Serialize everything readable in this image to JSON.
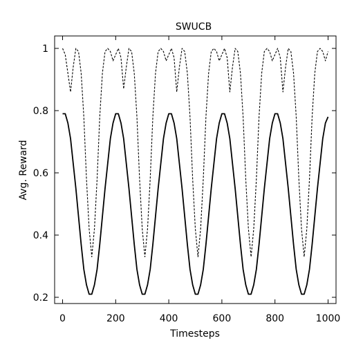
{
  "chart_data": {
    "type": "line",
    "title": "SWUCB",
    "xlabel": "Timesteps",
    "ylabel": "Avg. Reward",
    "xlim": [
      -30,
      1030
    ],
    "ylim": [
      0.18,
      1.04
    ],
    "xticks": [
      0,
      200,
      400,
      600,
      800,
      1000
    ],
    "xtick_labels": [
      "0",
      "200",
      "400",
      "600",
      "800",
      "1000"
    ],
    "yticks": [
      0.2,
      0.4,
      0.6,
      0.8,
      1.0
    ],
    "ytick_labels": [
      "0.2",
      "0.4",
      "0.6",
      "0.8",
      "1"
    ],
    "grid": false,
    "series": [
      {
        "style": "solid",
        "color": "#000000",
        "x": [
          0,
          10,
          20,
          30,
          40,
          50,
          60,
          70,
          80,
          90,
          100,
          110,
          120,
          130,
          140,
          150,
          160,
          170,
          180,
          190,
          200,
          210,
          220,
          230,
          240,
          250,
          260,
          270,
          280,
          290,
          300,
          310,
          320,
          330,
          340,
          350,
          360,
          370,
          380,
          390,
          400,
          410,
          420,
          430,
          440,
          450,
          460,
          470,
          480,
          490,
          500,
          510,
          520,
          530,
          540,
          550,
          560,
          570,
          580,
          590,
          600,
          610,
          620,
          630,
          640,
          650,
          660,
          670,
          680,
          690,
          700,
          710,
          720,
          730,
          740,
          750,
          760,
          770,
          780,
          790,
          800,
          810,
          820,
          830,
          840,
          850,
          860,
          870,
          880,
          890,
          900,
          910,
          920,
          930,
          940,
          950,
          960,
          970,
          980,
          990,
          1000
        ],
        "y": [
          0.79,
          0.79,
          0.76,
          0.71,
          0.63,
          0.55,
          0.46,
          0.37,
          0.29,
          0.24,
          0.21,
          0.21,
          0.24,
          0.29,
          0.37,
          0.46,
          0.55,
          0.63,
          0.71,
          0.76,
          0.79,
          0.79,
          0.76,
          0.71,
          0.63,
          0.55,
          0.46,
          0.37,
          0.29,
          0.24,
          0.21,
          0.21,
          0.24,
          0.29,
          0.37,
          0.46,
          0.55,
          0.63,
          0.71,
          0.76,
          0.79,
          0.79,
          0.76,
          0.71,
          0.63,
          0.55,
          0.46,
          0.37,
          0.29,
          0.24,
          0.21,
          0.21,
          0.24,
          0.29,
          0.37,
          0.46,
          0.55,
          0.63,
          0.71,
          0.76,
          0.79,
          0.79,
          0.76,
          0.71,
          0.63,
          0.55,
          0.46,
          0.37,
          0.29,
          0.24,
          0.21,
          0.21,
          0.24,
          0.29,
          0.37,
          0.46,
          0.55,
          0.63,
          0.71,
          0.76,
          0.79,
          0.79,
          0.76,
          0.71,
          0.63,
          0.55,
          0.46,
          0.37,
          0.29,
          0.24,
          0.21,
          0.21,
          0.24,
          0.29,
          0.37,
          0.46,
          0.55,
          0.63,
          0.71,
          0.76,
          0.78
        ]
      },
      {
        "style": "dashed",
        "color": "#000000",
        "x": [
          0,
          10,
          20,
          30,
          40,
          50,
          60,
          70,
          80,
          90,
          100,
          110,
          120,
          130,
          140,
          150,
          160,
          170,
          180,
          190,
          200,
          210,
          220,
          230,
          240,
          250,
          260,
          270,
          280,
          290,
          300,
          310,
          320,
          330,
          340,
          350,
          360,
          370,
          380,
          390,
          400,
          410,
          420,
          430,
          440,
          450,
          460,
          470,
          480,
          490,
          500,
          510,
          520,
          530,
          540,
          550,
          560,
          570,
          580,
          590,
          600,
          610,
          620,
          630,
          640,
          650,
          660,
          670,
          680,
          690,
          700,
          710,
          720,
          730,
          740,
          750,
          760,
          770,
          780,
          790,
          800,
          810,
          820,
          830,
          840,
          850,
          860,
          870,
          880,
          890,
          900,
          910,
          920,
          930,
          940,
          950,
          960,
          970,
          980,
          990,
          1000
        ],
        "y": [
          1.0,
          0.98,
          0.92,
          0.86,
          0.94,
          1.0,
          0.99,
          0.92,
          0.78,
          0.58,
          0.42,
          0.33,
          0.42,
          0.58,
          0.78,
          0.92,
          0.99,
          1.0,
          0.99,
          0.96,
          0.98,
          1.0,
          0.97,
          0.87,
          0.94,
          1.0,
          0.99,
          0.92,
          0.78,
          0.58,
          0.42,
          0.33,
          0.42,
          0.58,
          0.78,
          0.92,
          0.99,
          1.0,
          0.99,
          0.96,
          0.98,
          1.0,
          0.97,
          0.86,
          0.94,
          1.0,
          0.99,
          0.92,
          0.78,
          0.58,
          0.42,
          0.33,
          0.42,
          0.58,
          0.78,
          0.92,
          0.99,
          1.0,
          0.99,
          0.96,
          0.98,
          1.0,
          0.97,
          0.86,
          0.94,
          1.0,
          0.99,
          0.92,
          0.78,
          0.58,
          0.42,
          0.33,
          0.42,
          0.58,
          0.78,
          0.92,
          0.99,
          1.0,
          0.99,
          0.96,
          0.98,
          1.0,
          0.97,
          0.86,
          0.94,
          1.0,
          0.99,
          0.92,
          0.78,
          0.58,
          0.42,
          0.33,
          0.42,
          0.58,
          0.78,
          0.92,
          0.99,
          1.0,
          0.99,
          0.96,
          0.99
        ]
      }
    ]
  }
}
